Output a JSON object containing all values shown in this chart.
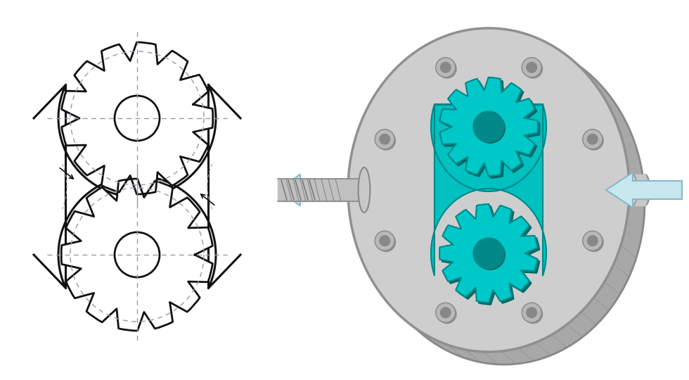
{
  "background_color": "#ffffff",
  "sketch_color": "#111111",
  "centerline_color": "#9999aa",
  "arrow_color": "#c8e8f0",
  "arrow_edge_color": "#88b8c8",
  "gear_color": "#00c8c8",
  "gear_dark_color": "#008888",
  "gear_shadow_color": "#006666",
  "housing_light": "#d8d8d8",
  "housing_mid": "#b8b8b8",
  "housing_dark": "#909090",
  "housing_edge": "#787878",
  "cavity_color": "#00c0c0",
  "bolt_color": "#a0a0a0",
  "bolt_dark": "#707070",
  "shaft_light": "#d0d0d0",
  "shaft_dark": "#909090"
}
